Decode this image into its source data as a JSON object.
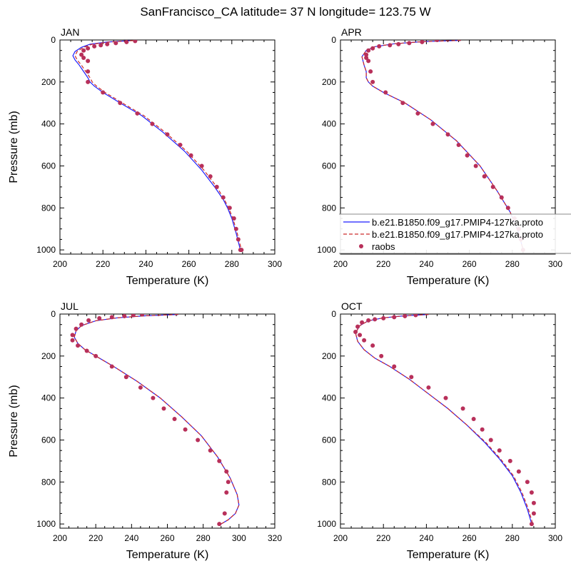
{
  "title": "SanFrancisco_CA  latitude= 37 N longitude= 123.75 W",
  "colors": {
    "model_1": "#1f1fff",
    "model_2": "#cc2a2a",
    "raobs": "#b8305a"
  },
  "legend": {
    "location": "inside APR panel, bottom-right",
    "entries": [
      {
        "label": "b.e21.B1850.f09_g17.PMIP4-127ka.proto",
        "style": "solid-line",
        "color": "#1f1fff"
      },
      {
        "label": "b.e21.B1850.f09_g17.PMIP4-127ka.proto",
        "style": "dashed-line",
        "color": "#cc2a2a"
      },
      {
        "label": "raobs",
        "style": "dots",
        "color": "#b8305a"
      }
    ]
  },
  "chart_data": [
    {
      "type": "line",
      "panel_title": "JAN",
      "xlabel": "Temperature (K)",
      "ylabel": "Pressure (mb)",
      "xlim": [
        200,
        300
      ],
      "ylim": [
        1020,
        0
      ],
      "y_reversed": true,
      "x_ticks": [
        200,
        220,
        240,
        260,
        280,
        300
      ],
      "y_ticks": [
        0,
        200,
        400,
        600,
        800,
        1000
      ],
      "series": [
        {
          "name": "b.e21.B1850.f09_g17.PMIP4-127ka.proto",
          "style": "solid",
          "x": [
            233,
            222,
            214,
            210,
            207,
            206,
            207,
            209,
            211,
            213,
            214,
            216,
            220,
            228,
            238,
            248,
            258,
            266,
            272,
            276,
            278,
            280,
            282,
            284
          ],
          "y": [
            3,
            10,
            20,
            35,
            55,
            75,
            95,
            120,
            150,
            180,
            200,
            220,
            250,
            300,
            360,
            440,
            530,
            620,
            700,
            760,
            800,
            850,
            920,
            1000
          ]
        },
        {
          "name": "b.e21.B1850.f09_g17.PMIP4-127ka.proto",
          "style": "dashed",
          "x": [
            234,
            223,
            215,
            211,
            208,
            207,
            208,
            210,
            212,
            214,
            215,
            217,
            221,
            229,
            239,
            249,
            259,
            267,
            273,
            276.5,
            278.5,
            280.5,
            282.5,
            284.5
          ],
          "y": [
            3,
            10,
            20,
            35,
            55,
            75,
            95,
            120,
            150,
            180,
            200,
            220,
            250,
            300,
            360,
            440,
            530,
            620,
            700,
            760,
            800,
            850,
            920,
            1000
          ]
        },
        {
          "name": "raobs",
          "style": "dots",
          "x": [
            235,
            231,
            226,
            222,
            219,
            216,
            213,
            211,
            210,
            211,
            213,
            213,
            213,
            220,
            228,
            236,
            243,
            250,
            256,
            261,
            266,
            270,
            273,
            276,
            279,
            281,
            282,
            283,
            284,
            284.5
          ],
          "y": [
            5,
            10,
            15,
            20,
            25,
            30,
            40,
            50,
            70,
            85,
            100,
            150,
            200,
            250,
            300,
            350,
            400,
            450,
            500,
            550,
            600,
            650,
            700,
            750,
            800,
            850,
            900,
            950,
            1000,
            1000
          ]
        }
      ]
    },
    {
      "type": "line",
      "panel_title": "APR",
      "xlabel": "Temperature (K)",
      "ylabel": "",
      "xlim": [
        200,
        300
      ],
      "ylim": [
        1020,
        0
      ],
      "y_reversed": true,
      "x_ticks": [
        200,
        220,
        240,
        260,
        280,
        300
      ],
      "y_ticks": [
        0,
        200,
        400,
        600,
        800,
        1000
      ],
      "series": [
        {
          "name": "b.e21.B1850.f09_g17.PMIP4-127ka.proto",
          "style": "solid",
          "x": [
            256,
            238,
            225,
            216,
            212,
            210,
            211,
            212,
            212,
            213,
            215,
            220,
            230,
            242,
            254,
            265,
            273,
            279,
            283,
            285
          ],
          "y": [
            2,
            8,
            18,
            32,
            50,
            80,
            120,
            150,
            180,
            200,
            220,
            250,
            300,
            380,
            480,
            600,
            720,
            820,
            920,
            1000
          ]
        },
        {
          "name": "b.e21.B1850.f09_g17.PMIP4-127ka.proto",
          "style": "dashed",
          "x": [
            256,
            238,
            225,
            216,
            212,
            210,
            211,
            212,
            212,
            213,
            215,
            220,
            230,
            242,
            254,
            265,
            273,
            279,
            283,
            285
          ],
          "y": [
            2,
            8,
            18,
            32,
            50,
            80,
            120,
            150,
            180,
            200,
            220,
            250,
            300,
            380,
            480,
            600,
            720,
            820,
            920,
            1000
          ]
        },
        {
          "name": "raobs",
          "style": "dots",
          "x": [
            245,
            238,
            232,
            227,
            223,
            218,
            215,
            213,
            212,
            212,
            213,
            214,
            215,
            221,
            229,
            236,
            243,
            250,
            255,
            259,
            263,
            267,
            271,
            275,
            278,
            281,
            283,
            284,
            285
          ],
          "y": [
            0,
            10,
            15,
            20,
            25,
            30,
            40,
            50,
            70,
            85,
            100,
            150,
            200,
            250,
            300,
            350,
            400,
            450,
            500,
            550,
            600,
            650,
            700,
            750,
            800,
            850,
            900,
            950,
            1000
          ]
        }
      ]
    },
    {
      "type": "line",
      "panel_title": "JUL",
      "xlabel": "Temperature (K)",
      "ylabel": "Pressure (mb)",
      "xlim": [
        200,
        320
      ],
      "ylim": [
        1020,
        0
      ],
      "y_reversed": true,
      "x_ticks": [
        200,
        220,
        240,
        260,
        280,
        300,
        320
      ],
      "y_ticks": [
        0,
        200,
        400,
        600,
        800,
        1000
      ],
      "series": [
        {
          "name": "b.e21.B1850.f09_g17.PMIP4-127ka.proto",
          "style": "solid",
          "x": [
            266,
            248,
            232,
            220,
            212,
            209,
            208,
            210,
            214,
            220,
            230,
            243,
            256,
            268,
            279,
            288,
            295,
            299,
            300,
            298,
            294,
            290
          ],
          "y": [
            2,
            8,
            18,
            32,
            55,
            80,
            110,
            140,
            170,
            200,
            250,
            320,
            400,
            490,
            580,
            680,
            780,
            860,
            910,
            950,
            980,
            1000
          ]
        },
        {
          "name": "b.e21.B1850.f09_g17.PMIP4-127ka.proto",
          "style": "dashed",
          "x": [
            266,
            248,
            232,
            220,
            212,
            209,
            208,
            210,
            214,
            220,
            230,
            243,
            256,
            268,
            279,
            288,
            295,
            299,
            300,
            298,
            294,
            290
          ],
          "y": [
            2,
            8,
            18,
            32,
            55,
            80,
            110,
            140,
            170,
            200,
            250,
            320,
            400,
            490,
            580,
            680,
            780,
            860,
            910,
            950,
            980,
            1000
          ]
        },
        {
          "name": "raobs",
          "style": "dots",
          "x": [
            246,
            241,
            236,
            229,
            222,
            216,
            212,
            209,
            207,
            207,
            210,
            215,
            220,
            229,
            237,
            245,
            252,
            258,
            264,
            270,
            277,
            284,
            289,
            293,
            294,
            293,
            292,
            289
          ],
          "y": [
            0,
            5,
            10,
            15,
            20,
            30,
            50,
            70,
            100,
            125,
            150,
            175,
            200,
            250,
            300,
            350,
            400,
            450,
            500,
            550,
            600,
            650,
            700,
            750,
            800,
            850,
            950,
            1000
          ]
        }
      ]
    },
    {
      "type": "line",
      "panel_title": "OCT",
      "xlabel": "Temperature (K)",
      "ylabel": "",
      "xlim": [
        200,
        300
      ],
      "ylim": [
        1020,
        0
      ],
      "y_reversed": true,
      "x_ticks": [
        200,
        220,
        240,
        260,
        280,
        300
      ],
      "y_ticks": [
        0,
        200,
        400,
        600,
        800,
        1000
      ],
      "series": [
        {
          "name": "b.e21.B1850.f09_g17.PMIP4-127ka.proto",
          "style": "solid",
          "x": [
            241,
            230,
            220,
            213,
            209,
            207,
            208,
            211,
            216,
            223,
            232,
            241,
            250,
            259,
            267,
            274,
            280,
            284,
            287,
            289
          ],
          "y": [
            2,
            8,
            18,
            32,
            55,
            90,
            130,
            170,
            210,
            250,
            310,
            380,
            450,
            530,
            610,
            690,
            770,
            850,
            930,
            1000
          ]
        },
        {
          "name": "b.e21.B1850.f09_g17.PMIP4-127ka.proto",
          "style": "dashed",
          "x": [
            241,
            230,
            220,
            213,
            209,
            207,
            208,
            211,
            216,
            223,
            232,
            241,
            250,
            259,
            267.5,
            274.5,
            280.5,
            284.5,
            287.5,
            289.5
          ],
          "y": [
            2,
            8,
            18,
            32,
            55,
            90,
            130,
            170,
            210,
            250,
            310,
            380,
            450,
            530,
            610,
            690,
            770,
            850,
            930,
            1000
          ]
        },
        {
          "name": "raobs",
          "style": "dots",
          "x": [
            235,
            230,
            225,
            220,
            216,
            213,
            210,
            208,
            207,
            209,
            211,
            215,
            219,
            225,
            233,
            241,
            249,
            257,
            262,
            266,
            270,
            274,
            279,
            283,
            287,
            289,
            290,
            290,
            289
          ],
          "y": [
            5,
            10,
            15,
            20,
            25,
            30,
            40,
            60,
            85,
            100,
            125,
            150,
            200,
            250,
            300,
            350,
            400,
            450,
            500,
            550,
            600,
            650,
            700,
            750,
            800,
            850,
            900,
            950,
            1000
          ]
        }
      ]
    }
  ]
}
